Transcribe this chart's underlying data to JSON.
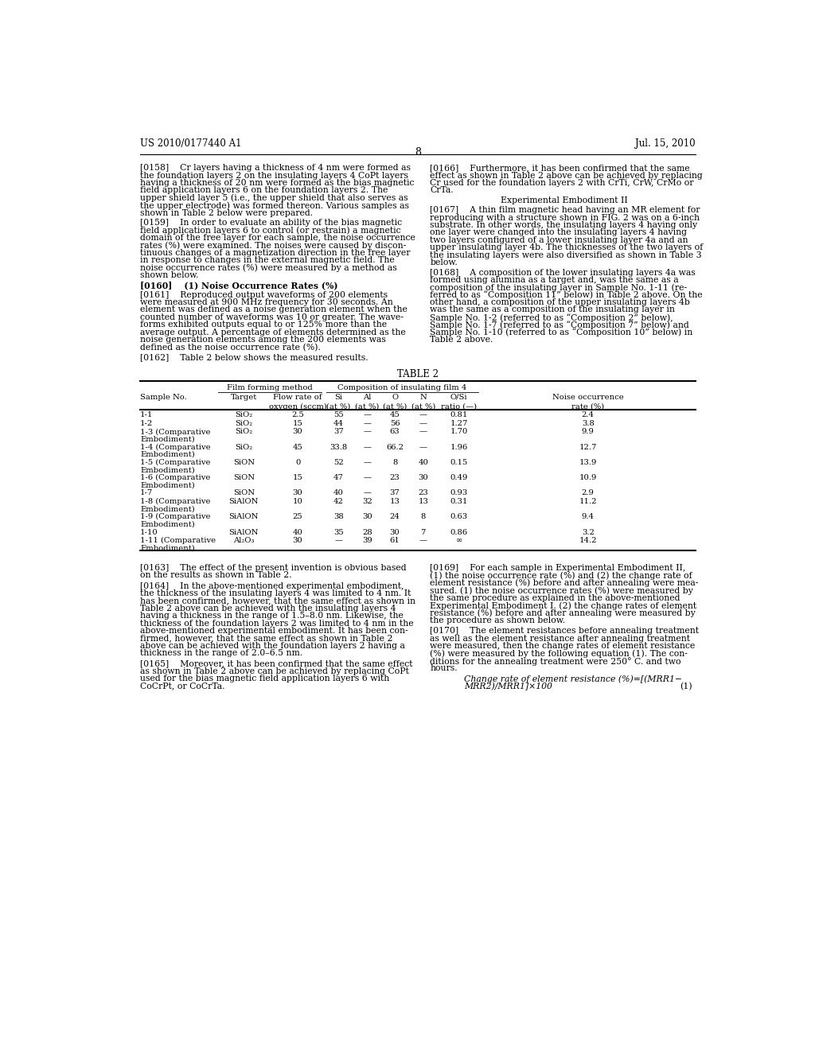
{
  "page_header_left": "US 2010/0177440 A1",
  "page_header_right": "Jul. 15, 2010",
  "page_number": "8",
  "background_color": "#ffffff",
  "text_color": "#000000",
  "left_column_paragraphs": [
    {
      "tag": "[0158]",
      "text": "Cr layers having a thickness of 4 nm were formed as\nthe foundation layers 2 on the insulating layers 4 CoPt layers\nhaving a thickness of 20 nm were formed as the bias magnetic\nfield application layers 6 on the foundation layers 2. The\nupper shield layer 5 (i.e., the upper shield that also serves as\nthe upper electrode) was formed thereon. Various samples as\nshown in Table 2 below were prepared."
    },
    {
      "tag": "[0159]",
      "text": "In order to evaluate an ability of the bias magnetic\nfield application layers 6 to control (or restrain) a magnetic\ndomain of the free layer for each sample, the noise occurrence\nrates (%) were examined. The noises were caused by discon-\ntinuous changes of a magnetization direction in the free layer\nin response to changes in the external magnetic field. The\nnoise occurrence rates (%) were measured by a method as\nshown below."
    },
    {
      "tag": "[0160]",
      "text": "(1) Noise Occurrence Rates (%)"
    },
    {
      "tag": "[0161]",
      "text": "Reproduced output waveforms of 200 elements\nwere measured at 900 MHz frequency for 30 seconds. An\nelement was defined as a noise generation element when the\ncounted number of waveforms was 10 or greater. The wave-\nforms exhibited outputs equal to or 125% more than the\naverage output. A percentage of elements determined as the\nnoise generation elements among the 200 elements was\ndefined as the noise occurrence rate (%)."
    },
    {
      "tag": "[0162]",
      "text": "Table 2 below shows the measured results."
    }
  ],
  "right_column_paragraphs": [
    {
      "tag": "[0166]",
      "text": "Furthermore, it has been confirmed that the same\neffect as shown in Table 2 above can be achieved by replacing\nCr used for the foundation layers 2 with CrTi, CrW, CrMo or\nCrTa."
    },
    {
      "subtitle": "Experimental Embodiment II"
    },
    {
      "tag": "[0167]",
      "text": "A thin film magnetic head having an MR element for\nreproducing with a structure shown in FIG. 2 was on a 6-inch\nsubstrate. In other words, the insulating layers 4 having only\none layer were changed into the insulating layers 4 having\ntwo layers configured of a lower insulating layer 4a and an\nupper insulating layer 4b. The thicknesses of the two layers of\nthe insulating layers were also diversified as shown in Table 3\nbelow."
    },
    {
      "tag": "[0168]",
      "text": "A composition of the lower insulating layers 4a was\nformed using alumina as a target and, was the same as a\ncomposition of the insulating layer in Sample No. 1-11 (re-\nferred to as “Composition 11” below) in Table 2 above. On the\nother hand, a composition of the upper insulating layers 4b\nwas the same as a composition of the insulating layer in\nSample No. 1-2 (referred to as “Composition 2” below),\nSample No. 1-7 (referred to as “Composition 7” below) and\nSample No. 1-10 (referred to as “Composition 10” below) in\nTable 2 above."
    }
  ],
  "table_title": "TABLE 2",
  "table_group1_label": "Film forming method",
  "table_group2_label": "Composition of insulating film 4",
  "table_rows": [
    [
      "1-1",
      "SiO₂",
      "2.5",
      "55",
      "—",
      "45",
      "—",
      "0.81",
      "2.4"
    ],
    [
      "1-2",
      "SiO₂",
      "15",
      "44",
      "—",
      "56",
      "—",
      "1.27",
      "3.8"
    ],
    [
      "1-3 (Comparative\nEmbodiment)",
      "SiO₂",
      "30",
      "37",
      "—",
      "63",
      "—",
      "1.70",
      "9.9"
    ],
    [
      "1-4 (Comparative\nEmbodiment)",
      "SiO₂",
      "45",
      "33.8",
      "—",
      "66.2",
      "—",
      "1.96",
      "12.7"
    ],
    [
      "1-5 (Comparative\nEmbodiment)",
      "SiON",
      "0",
      "52",
      "—",
      "8",
      "40",
      "0.15",
      "13.9"
    ],
    [
      "1-6 (Comparative\nEmbodiment)",
      "SiON",
      "15",
      "47",
      "—",
      "23",
      "30",
      "0.49",
      "10.9"
    ],
    [
      "1-7",
      "SiON",
      "30",
      "40",
      "—",
      "37",
      "23",
      "0.93",
      "2.9"
    ],
    [
      "1-8 (Comparative\nEmbodiment)",
      "SiAlON",
      "10",
      "42",
      "32",
      "13",
      "13",
      "0.31",
      "11.2"
    ],
    [
      "1-9 (Comparative\nEmbodiment)",
      "SiAlON",
      "25",
      "38",
      "30",
      "24",
      "8",
      "0.63",
      "9.4"
    ],
    [
      "1-10",
      "SiAlON",
      "40",
      "35",
      "28",
      "30",
      "7",
      "0.86",
      "3.2"
    ],
    [
      "1-11 (Comparative\nEmbodiment)",
      "Al₂O₃",
      "30",
      "—",
      "39",
      "61",
      "—",
      "∞",
      "14.2"
    ]
  ],
  "bottom_left_paragraphs": [
    {
      "tag": "[0163]",
      "text": "The effect of the present invention is obvious based\non the results as shown in Table 2."
    },
    {
      "tag": "[0164]",
      "text": "In the above-mentioned experimental embodiment,\nthe thickness of the insulating layers 4 was limited to 4 nm. It\nhas been confirmed, however, that the same effect as shown in\nTable 2 above can be achieved with the insulating layers 4\nhaving a thickness in the range of 1.5–8.0 nm. Likewise, the\nthickness of the foundation layers 2 was limited to 4 nm in the\nabove-mentioned experimental embodiment. It has been con-\nfirmed, however, that the same effect as shown in Table 2\nabove can be achieved with the foundation layers 2 having a\nthickness in the range of 2.0–6.5 nm."
    },
    {
      "tag": "[0165]",
      "text": "Moreover, it has been confirmed that the same effect\nas shown in Table 2 above can be achieved by replacing CoPt\nused for the bias magnetic field application layers 6 with\nCoCrPt, or CoCrTa."
    }
  ],
  "bottom_right_paragraphs": [
    {
      "tag": "[0169]",
      "text": "For each sample in Experimental Embodiment II,\n(1) the noise occurrence rate (%) and (2) the change rate of\nelement resistance (%) before and after annealing were mea-\nsured. (1) the noise occurrence rates (%) were measured by\nthe same procedure as explained in the above-mentioned\nExperimental Embodiment I. (2) the change rates of element\nresistance (%) before and after annealing were measured by\nthe procedure as shown below."
    },
    {
      "tag": "[0170]",
      "text": "The element resistances before annealing treatment\nas well as the element resistance after annealing treatment\nwere measured, then the change rates of element resistance\n(%) were measured by the following equation (1). The con-\nditions for the annealing treatment were 250° C. and two\nhours."
    },
    {
      "equation_label": "Change rate of element resistance (%)=[(MRR1−\nMRR2)/MRR1]×100",
      "equation_number": "(1)"
    }
  ]
}
